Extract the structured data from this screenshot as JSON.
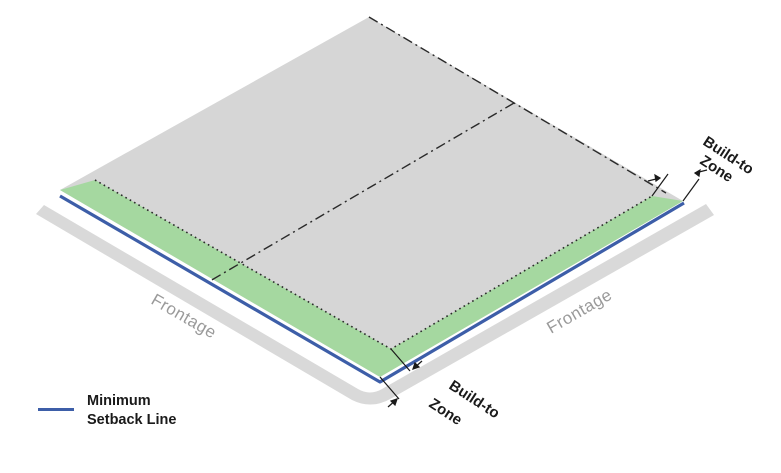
{
  "colors": {
    "lot": "#d6d6d6",
    "build_to_zone": "#a5d8a0",
    "setback_line": "#3d5ea8",
    "sidewalk": "#d9d9d9",
    "lot_line": "#2a2a2a"
  },
  "labels": {
    "frontage_left": "Frontage",
    "frontage_right": "Frontage",
    "build_to_zone_top_1": "Build-to",
    "build_to_zone_top_2": "Zone",
    "build_to_zone_bottom_1": "Build-to",
    "build_to_zone_bottom_2": "Zone"
  },
  "legend": {
    "line1": "Minimum",
    "line2": "Setback Line"
  }
}
